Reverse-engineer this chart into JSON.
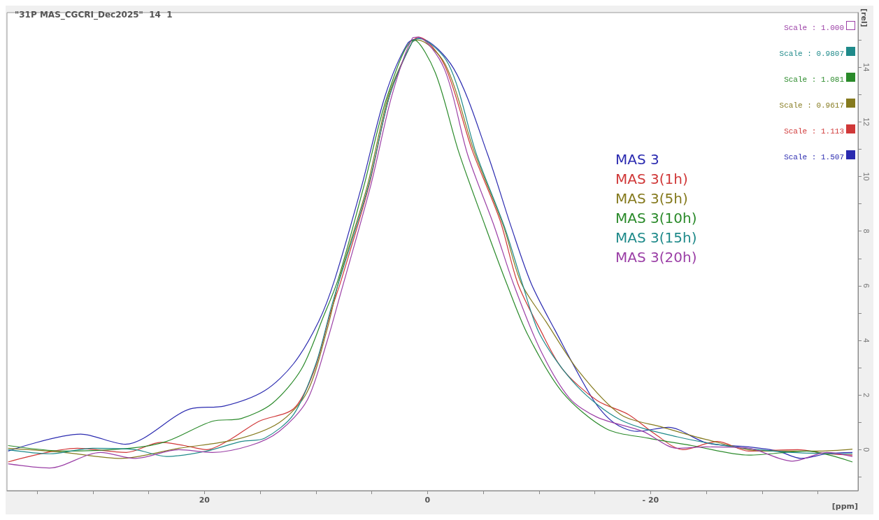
{
  "chart_data": {
    "type": "line",
    "title": "\"31P MAS_CGCRI_Dec2025\"  14  1",
    "xlabel": "[ppm]",
    "ylabel": "[rel]",
    "xlim": [
      37.7,
      -38.6
    ],
    "ylim": [
      -1.5,
      16
    ],
    "xticks": [
      {
        "value": 35,
        "label": null
      },
      {
        "value": 30,
        "label": null
      },
      {
        "value": 25,
        "label": null
      },
      20,
      {
        "value": 15,
        "label": null
      },
      {
        "value": 10,
        "label": null
      },
      {
        "value": 5,
        "label": null
      },
      0,
      {
        "value": -5,
        "label": null
      },
      {
        "value": -10,
        "label": null
      },
      {
        "value": -15,
        "label": null
      },
      {
        "value": -20,
        "label": "- 20"
      },
      {
        "value": -25,
        "label": null
      },
      {
        "value": -30,
        "label": null
      },
      {
        "value": -35,
        "label": null
      }
    ],
    "yticks": [
      {
        "value": -1,
        "label": null
      },
      0,
      {
        "value": 1,
        "label": null
      },
      2,
      {
        "value": 3,
        "label": null
      },
      4,
      {
        "value": 5,
        "label": null
      },
      6,
      {
        "value": 7,
        "label": null
      },
      8,
      {
        "value": 9,
        "label": null
      },
      10,
      {
        "value": 11,
        "label": null
      },
      12,
      {
        "value": 13,
        "label": null
      },
      14,
      {
        "value": 15,
        "label": null
      }
    ],
    "grid": false,
    "marker": "none",
    "line_style": "solid",
    "legend": "right",
    "annotations": [
      "Scale : 1.000",
      "Scale : 0.9807",
      "Scale : 1.081",
      "Scale : 0.9617",
      "Scale : 1.113",
      "Scale : 1.507"
    ],
    "series": [
      {
        "name": "MAS 3",
        "color": "#2b2bb0",
        "x": [
          37.6,
          31.1,
          27.1,
          21.3,
          18.2,
          14.6,
          12.0,
          9.75,
          8.3,
          5.9,
          3.8,
          1.8,
          0.74,
          -2.35,
          -5.4,
          -7.5,
          -9.3,
          -11.4,
          -14.9,
          -16.7,
          -18.8,
          -21.6,
          -25,
          -28.8,
          -31.4,
          -33.5,
          -35.8,
          -38.1
        ],
        "values": [
          -0.05,
          0.57,
          0.2,
          1.49,
          1.6,
          2.16,
          3.15,
          4.7,
          6.25,
          9.65,
          12.95,
          14.86,
          15.06,
          13.95,
          10.8,
          8.16,
          6.08,
          4.4,
          1.8,
          0.99,
          0.67,
          0.82,
          0.25,
          0.1,
          -0.05,
          -0.32,
          -0.15,
          -0.1
        ]
      },
      {
        "name": "MAS 3(1h)",
        "color": "#d03838",
        "x": [
          37.6,
          31.4,
          27,
          23.9,
          21.8,
          19.8,
          17.7,
          15.1,
          12,
          10.2,
          8.7,
          7.7,
          5.25,
          3.4,
          1.36,
          0.8,
          -1.5,
          -4,
          -6.5,
          -8.1,
          -10.1,
          -12.1,
          -15.2,
          -18,
          -20.4,
          -22.9,
          -26,
          -28.8,
          -33.2,
          -35.8,
          -38.1
        ],
        "values": [
          -0.45,
          0.05,
          -0.1,
          0.27,
          0.15,
          0,
          0.37,
          1.04,
          1.5,
          2.85,
          5.0,
          6.25,
          9.65,
          12.95,
          14.94,
          15.1,
          14.1,
          10.97,
          8.4,
          6.08,
          4.4,
          2.95,
          1.8,
          1.29,
          0.57,
          0,
          0.3,
          -0.05,
          0,
          -0.15,
          -0.2
        ]
      },
      {
        "name": "MAS 3(5h)",
        "color": "#857a1e",
        "x": [
          37.6,
          32.6,
          27.5,
          22.3,
          17.2,
          13.3,
          10.8,
          9,
          7.9,
          5.4,
          3.5,
          1.4,
          0.9,
          -1.6,
          -4.2,
          -6.8,
          -8.4,
          -10.6,
          -13.6,
          -17.3,
          -21.1,
          -25,
          -30.1,
          -35.2,
          -38.1
        ],
        "values": [
          0.05,
          -0.1,
          -0.32,
          0.05,
          0.37,
          0.99,
          2.1,
          4.4,
          6.25,
          9.65,
          12.95,
          14.9,
          15.0,
          14.1,
          10.9,
          8.2,
          6.1,
          4.7,
          2.85,
          1.29,
          0.82,
          0.37,
          -0.05,
          -0.05,
          0.02
        ]
      },
      {
        "name": "MAS 3(10h)",
        "color": "#2a8a2a",
        "x": [
          37.6,
          32.6,
          26.7,
          23.4,
          19.3,
          16.7,
          13.9,
          11.3,
          9.3,
          8,
          5.7,
          3.6,
          1.2,
          -0.7,
          -2.8,
          -5.2,
          -7.1,
          -9,
          -12.1,
          -16,
          -19.8,
          -23.7,
          -28.8,
          -34,
          -38.1
        ],
        "values": [
          0.15,
          -0.05,
          0.05,
          0.3,
          1.04,
          1.14,
          1.7,
          2.95,
          4.9,
          6.25,
          9.65,
          12.95,
          15.0,
          13.8,
          10.9,
          8.16,
          6.08,
          4.2,
          2.1,
          0.77,
          0.42,
          0.15,
          -0.2,
          -0.05,
          -0.45
        ]
      },
      {
        "name": "MAS 3(15h)",
        "color": "#1f8a8a",
        "x": [
          37.6,
          33.9,
          30,
          26.2,
          23.4,
          19.8,
          16.7,
          14.6,
          12,
          10,
          8.5,
          5.3,
          3.4,
          1.4,
          0.8,
          -1.9,
          -4.4,
          -6.9,
          -8.5,
          -10.1,
          -13.4,
          -17.3,
          -22.4,
          -27.5,
          -32.7,
          -38.1
        ],
        "values": [
          0,
          -0.15,
          0.05,
          0,
          -0.25,
          -0.05,
          0.3,
          0.42,
          1.29,
          3.15,
          5.4,
          9.65,
          12.95,
          14.9,
          15.05,
          14.1,
          10.8,
          8.16,
          6.08,
          4.2,
          2.33,
          1.09,
          0.47,
          0.1,
          -0.1,
          -0.15
        ]
      },
      {
        "name": "MAS 3(20h)",
        "color": "#9b3fa6",
        "x": [
          37.6,
          33.9,
          29.3,
          26.2,
          22.3,
          19.3,
          15.9,
          13.3,
          10.8,
          9,
          7.8,
          5.1,
          3.2,
          1.36,
          0.9,
          -1.5,
          -3.6,
          -6,
          -7.7,
          -10.1,
          -12.7,
          -15.2,
          -19.3,
          -22.4,
          -25,
          -28.8,
          -32.7,
          -35.8,
          -38.1
        ],
        "values": [
          -0.52,
          -0.67,
          -0.1,
          -0.32,
          0,
          -0.1,
          0.15,
          0.67,
          1.8,
          3.97,
          5.7,
          9.65,
          12.95,
          15.06,
          15.1,
          13.95,
          10.8,
          8.16,
          6.08,
          3.67,
          1.9,
          1.19,
          0.67,
          0.05,
          0.1,
          0.05,
          -0.42,
          -0.1,
          -0.25
        ]
      }
    ]
  }
}
